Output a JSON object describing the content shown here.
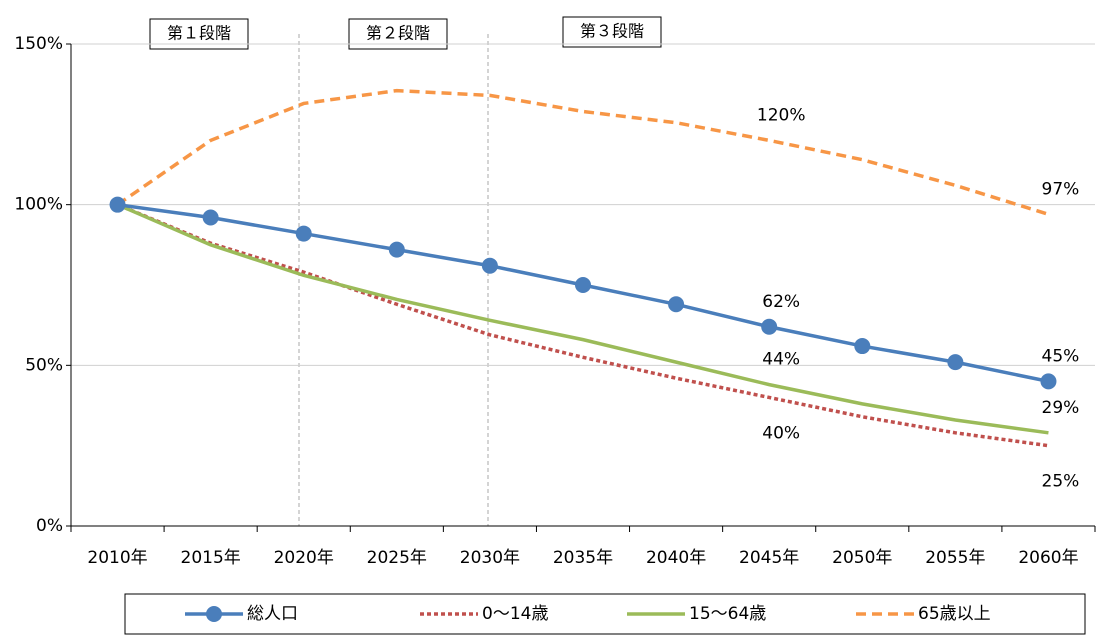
{
  "chart_data": {
    "type": "line",
    "categories": [
      "2010年",
      "2015年",
      "2020年",
      "2025年",
      "2030年",
      "2035年",
      "2040年",
      "2045年",
      "2050年",
      "2055年",
      "2060年"
    ],
    "series": [
      {
        "name": "総人口",
        "color": "#4a7ebb",
        "dash": "solid",
        "marker": true,
        "values": [
          100,
          96,
          91,
          86,
          81,
          75,
          69,
          62,
          56,
          51,
          45
        ],
        "value_labels": [
          null,
          null,
          null,
          null,
          null,
          null,
          null,
          "62%",
          null,
          null,
          "45%"
        ],
        "label_position": "above"
      },
      {
        "name": "0～14歳",
        "color": "#c0504d",
        "dash": "dotted",
        "marker": false,
        "values": [
          100,
          88,
          79,
          69,
          59.5,
          52.5,
          46,
          40,
          34,
          29,
          25
        ],
        "value_labels": [
          null,
          null,
          null,
          null,
          null,
          null,
          null,
          "40%",
          null,
          null,
          "25%"
        ],
        "label_position": "below"
      },
      {
        "name": "15～64歳",
        "color": "#9bbb59",
        "dash": "solid",
        "marker": false,
        "values": [
          100,
          87.5,
          78,
          70.5,
          64,
          58,
          51,
          44,
          38,
          33,
          29
        ],
        "value_labels": [
          null,
          null,
          null,
          null,
          null,
          null,
          null,
          "44%",
          null,
          null,
          "29%"
        ],
        "label_position": "above"
      },
      {
        "name": "65歳以上",
        "color": "#f79646",
        "dash": "dashed",
        "marker": false,
        "values": [
          100,
          120,
          131.5,
          135.5,
          134,
          129,
          125.5,
          120,
          114,
          106,
          97
        ],
        "value_labels": [
          null,
          null,
          null,
          null,
          null,
          null,
          null,
          "120%",
          null,
          null,
          "97%"
        ],
        "label_position": "above"
      }
    ],
    "ylim": [
      0,
      150
    ],
    "yticks": [
      {
        "value": 0,
        "label": "0%"
      },
      {
        "value": 50,
        "label": "50%"
      },
      {
        "value": 100,
        "label": "100%"
      },
      {
        "value": 150,
        "label": "150%"
      }
    ],
    "grid": true,
    "annotations": [
      "第１段階",
      "第２段階",
      "第３段階"
    ],
    "legend": "bottom"
  }
}
